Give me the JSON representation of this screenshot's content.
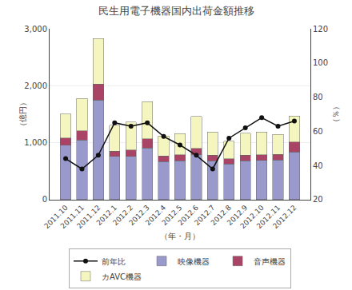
{
  "chart_data": {
    "type": "bar",
    "title": "民生用電子機器国内出荷金額推移",
    "ylabel": "（億円）",
    "y2label": "（％）",
    "xlabel": "（年・月）",
    "categories": [
      "2011.10",
      "2011.11",
      "2011.12",
      "2012.1",
      "2012.2",
      "2012.3",
      "2012.4",
      "2012.5",
      "2012.6",
      "2012.7",
      "2012.8",
      "2012.9",
      "2012.10",
      "2012.11",
      "2012.12"
    ],
    "stacked": true,
    "grid": true,
    "series": [
      {
        "name": "カAVC機器",
        "color": "#f5f5c0",
        "values": [
          420,
          570,
          800,
          460,
          490,
          650,
          350,
          370,
          560,
          410,
          310,
          390,
          400,
          350,
          460
        ]
      },
      {
        "name": "音声機器",
        "color": "#aa4466",
        "values": [
          120,
          160,
          280,
          90,
          110,
          160,
          100,
          110,
          110,
          100,
          90,
          100,
          100,
          95,
          170
        ]
      },
      {
        "name": "映像機器",
        "color": "#9999cc",
        "values": [
          960,
          1050,
          1750,
          760,
          760,
          910,
          670,
          680,
          790,
          680,
          630,
          680,
          690,
          700,
          840
        ]
      },
      {
        "name": "前年比",
        "type": "line",
        "axis": "y2",
        "marker": "circle",
        "color": "#111111",
        "values": [
          44,
          38,
          46,
          65,
          63,
          65,
          57,
          52,
          46,
          38,
          56,
          62,
          68,
          63,
          66
        ]
      }
    ],
    "ylim": [
      0,
      3000
    ],
    "yticks": [
      0,
      {
        "value": 1000,
        "label": "1,000"
      },
      {
        "value": 2000,
        "label": "2,000"
      },
      {
        "value": 3000,
        "label": "3,000"
      }
    ],
    "y2lim": [
      20,
      120
    ],
    "y2ticks": [
      20,
      40,
      60,
      80,
      100,
      120
    ]
  }
}
